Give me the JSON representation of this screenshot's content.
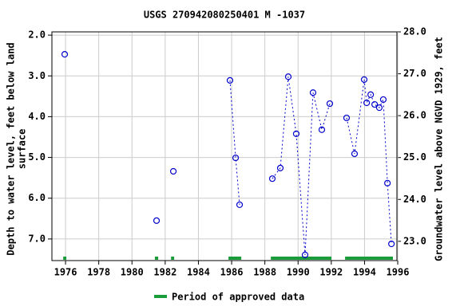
{
  "chart_data": {
    "type": "line",
    "title": "USGS 270942080250401 M  -1037",
    "ylabel": [
      "Depth to water level, feet below land",
      "surface"
    ],
    "y2label": "Groundwater level above NGVD 1929, feet",
    "x": [
      1975.95,
      null,
      1981.48,
      null,
      1982.49,
      null,
      1985.9,
      1986.24,
      1986.48,
      null,
      1988.45,
      1988.93,
      1989.41,
      1989.89,
      1990.42,
      1990.9,
      1991.43,
      1991.91,
      null,
      1992.92,
      1993.4,
      1993.98,
      1994.13,
      1994.37,
      1994.61,
      1994.89,
      1995.13,
      1995.38,
      1995.62
    ],
    "series": [
      {
        "color": "#0000cc",
        "values": [
          2.47,
          null,
          6.55,
          null,
          5.34,
          null,
          3.11,
          5.01,
          6.16,
          null,
          5.52,
          5.26,
          3.02,
          4.42,
          7.39,
          3.41,
          4.32,
          3.68,
          null,
          4.03,
          4.91,
          3.09,
          3.66,
          3.46,
          3.7,
          3.78,
          3.58,
          5.63,
          7.12
        ]
      }
    ],
    "connected": [
      false,
      false,
      false,
      false,
      false,
      false,
      true,
      true,
      true,
      false,
      true,
      true,
      true,
      true,
      true,
      true,
      true,
      true,
      false,
      true,
      true,
      true,
      true,
      true,
      true,
      true,
      true,
      true,
      true
    ],
    "xlim": [
      1975.18,
      1995.95
    ],
    "xticks": [
      1976,
      1978,
      1980,
      1982,
      1984,
      1986,
      1988,
      1990,
      1992,
      1994,
      1996
    ],
    "ylim": [
      1.92,
      7.53
    ],
    "y_inverted": true,
    "yticks": [
      {
        "value": 2,
        "label": "2.0"
      },
      {
        "value": 3,
        "label": "3.0"
      },
      {
        "value": 4,
        "label": "4.0"
      },
      {
        "value": 5,
        "label": "5.0"
      },
      {
        "value": 6,
        "label": "6.0"
      },
      {
        "value": 7,
        "label": "7.0"
      }
    ],
    "y2lim": [
      22.54,
      28.0
    ],
    "y2ticks": [
      {
        "value": 23,
        "label": "23.0"
      },
      {
        "value": 24,
        "label": "24.0"
      },
      {
        "value": 25,
        "label": "25.0"
      },
      {
        "value": 26,
        "label": "26.0"
      },
      {
        "value": 27,
        "label": "27.0"
      },
      {
        "value": 28,
        "label": "28.0"
      }
    ],
    "grid": true,
    "approved_periods": [
      [
        1975.86,
        1976.05
      ],
      [
        1981.38,
        1981.58
      ],
      [
        1982.35,
        1982.54
      ],
      [
        1985.81,
        1986.58
      ],
      [
        1988.36,
        1992.01
      ],
      [
        1992.83,
        1995.71
      ]
    ],
    "approved_color": "#1a9c3a",
    "approved_legend": "Period of approved data"
  }
}
